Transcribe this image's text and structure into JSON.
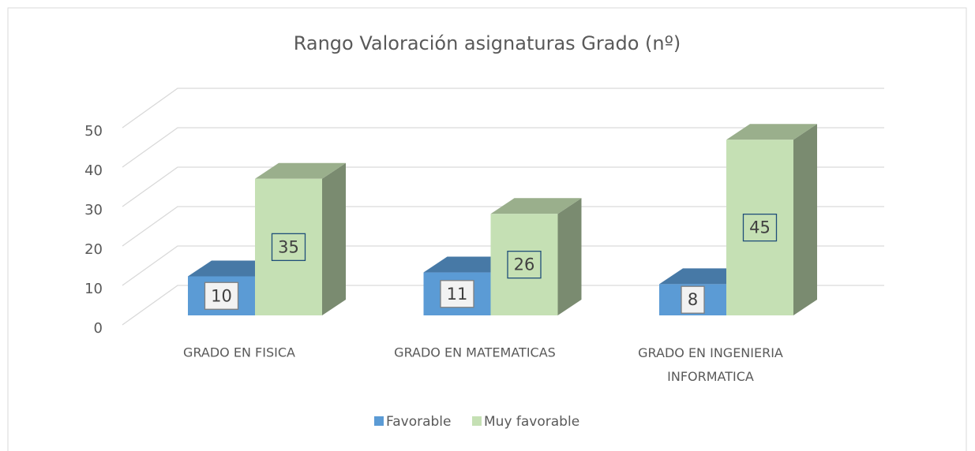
{
  "chart_data": {
    "type": "bar3d",
    "title": "Rango Valoración asignaturas Grado (nº)",
    "categories": [
      "GRADO EN FISICA",
      "GRADO EN MATEMATICAS",
      "GRADO EN INGENIERIA INFORMATICA"
    ],
    "series": [
      {
        "name": "Favorable",
        "color": "#5b9bd5",
        "values": [
          10,
          11,
          8
        ]
      },
      {
        "name": "Muy favorable",
        "color": "#c5e0b4",
        "values": [
          35,
          26,
          45
        ]
      }
    ],
    "ylim": [
      0,
      50
    ],
    "yticks": [
      0,
      10,
      20,
      30,
      40,
      50
    ],
    "grid": true,
    "legend": "bottom"
  }
}
